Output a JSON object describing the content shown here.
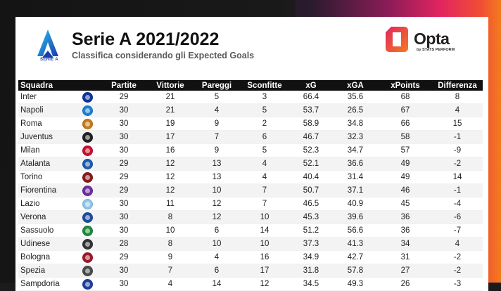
{
  "header": {
    "title": "Serie A 2021/2022",
    "subtitle": "Classifica considerando gli Expected Goals",
    "league_logo_text": "SERIE A",
    "brand": "Opta",
    "brand_sub": "by STATS PERFORM"
  },
  "colors": {
    "header_row": "#111111",
    "row_alt": "#f3f3f3",
    "opta_brand": "#e2255f",
    "league_blue": "#1a3cab"
  },
  "table": {
    "columns": [
      "Squadra",
      "",
      "Partite",
      "Vittorie",
      "Pareggi",
      "Sconfitte",
      "xG",
      "xGA",
      "xPoints",
      "Differenza"
    ],
    "rows": [
      {
        "team": "Inter",
        "crest": "inter-crest",
        "color": "#10349a",
        "p": "29",
        "w": "21",
        "d": "5",
        "l": "3",
        "xg": "66.4",
        "xga": "35.6",
        "xpts": "68",
        "diff": "8"
      },
      {
        "team": "Napoli",
        "crest": "napoli-crest",
        "color": "#1d7fd1",
        "p": "30",
        "w": "21",
        "d": "4",
        "l": "5",
        "xg": "53.7",
        "xga": "26.5",
        "xpts": "67",
        "diff": "4"
      },
      {
        "team": "Roma",
        "crest": "roma-crest",
        "color": "#c47a1a",
        "p": "30",
        "w": "19",
        "d": "9",
        "l": "2",
        "xg": "58.9",
        "xga": "34.8",
        "xpts": "66",
        "diff": "15"
      },
      {
        "team": "Juventus",
        "crest": "juventus-crest",
        "color": "#222222",
        "p": "30",
        "w": "17",
        "d": "7",
        "l": "6",
        "xg": "46.7",
        "xga": "32.3",
        "xpts": "58",
        "diff": "-1"
      },
      {
        "team": "Milan",
        "crest": "milan-crest",
        "color": "#c8102e",
        "p": "30",
        "w": "16",
        "d": "9",
        "l": "5",
        "xg": "52.3",
        "xga": "34.7",
        "xpts": "57",
        "diff": "-9"
      },
      {
        "team": "Atalanta",
        "crest": "atalanta-crest",
        "color": "#1c5cb0",
        "p": "29",
        "w": "12",
        "d": "13",
        "l": "4",
        "xg": "52.1",
        "xga": "36.6",
        "xpts": "49",
        "diff": "-2"
      },
      {
        "team": "Torino",
        "crest": "torino-crest",
        "color": "#8a1c1c",
        "p": "29",
        "w": "12",
        "d": "13",
        "l": "4",
        "xg": "40.4",
        "xga": "31.4",
        "xpts": "49",
        "diff": "14"
      },
      {
        "team": "Fiorentina",
        "crest": "fiorentina-crest",
        "color": "#6a2ea0",
        "p": "29",
        "w": "12",
        "d": "10",
        "l": "7",
        "xg": "50.7",
        "xga": "37.1",
        "xpts": "46",
        "diff": "-1"
      },
      {
        "team": "Lazio",
        "crest": "lazio-crest",
        "color": "#8fc6ea",
        "p": "30",
        "w": "11",
        "d": "12",
        "l": "7",
        "xg": "46.5",
        "xga": "40.9",
        "xpts": "45",
        "diff": "-4"
      },
      {
        "team": "Verona",
        "crest": "verona-crest",
        "color": "#1d4fa0",
        "p": "30",
        "w": "8",
        "d": "12",
        "l": "10",
        "xg": "45.3",
        "xga": "39.6",
        "xpts": "36",
        "diff": "-6"
      },
      {
        "team": "Sassuolo",
        "crest": "sassuolo-crest",
        "color": "#1e8a3a",
        "p": "30",
        "w": "10",
        "d": "6",
        "l": "14",
        "xg": "51.2",
        "xga": "56.6",
        "xpts": "36",
        "diff": "-7"
      },
      {
        "team": "Udinese",
        "crest": "udinese-crest",
        "color": "#333333",
        "p": "28",
        "w": "8",
        "d": "10",
        "l": "10",
        "xg": "37.3",
        "xga": "41.3",
        "xpts": "34",
        "diff": "4"
      },
      {
        "team": "Bologna",
        "crest": "bologna-crest",
        "color": "#9e1b2b",
        "p": "29",
        "w": "9",
        "d": "4",
        "l": "16",
        "xg": "34.9",
        "xga": "42.7",
        "xpts": "31",
        "diff": "-2"
      },
      {
        "team": "Spezia",
        "crest": "spezia-crest",
        "color": "#4a4a4a",
        "p": "30",
        "w": "7",
        "d": "6",
        "l": "17",
        "xg": "31.8",
        "xga": "57.8",
        "xpts": "27",
        "diff": "-2"
      },
      {
        "team": "Sampdoria",
        "crest": "sampdoria-crest",
        "color": "#1f3e9e",
        "p": "30",
        "w": "4",
        "d": "14",
        "l": "12",
        "xg": "34.5",
        "xga": "49.3",
        "xpts": "26",
        "diff": "-3"
      }
    ]
  }
}
